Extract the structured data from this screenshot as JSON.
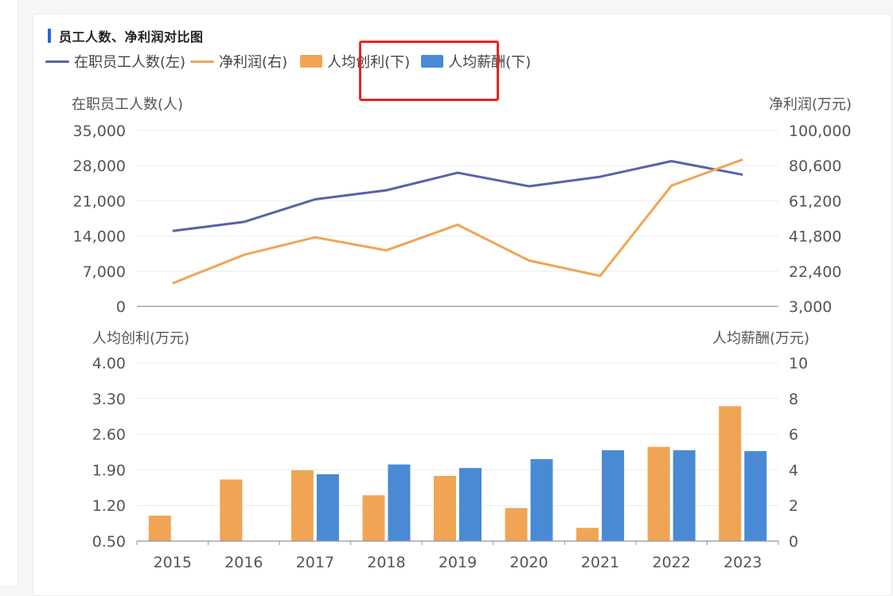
{
  "card": {
    "title": "员工人数、净利润对比图"
  },
  "legend": [
    {
      "label": "在职员工人数(左)",
      "type": "line",
      "color": "#5a63a5"
    },
    {
      "label": "净利润(右)",
      "type": "line",
      "color": "#f0a555"
    },
    {
      "label": "人均创利(下)",
      "type": "bar",
      "color": "#f0a555"
    },
    {
      "label": "人均薪酬(下)",
      "type": "bar",
      "color": "#4a8ad4"
    }
  ],
  "chart_data": [
    {
      "type": "line",
      "title": "",
      "x": [
        "2015",
        "2016",
        "2017",
        "2018",
        "2019",
        "2020",
        "2021",
        "2022",
        "2023"
      ],
      "y_left_label": "在职员工人数(人)",
      "y_right_label": "净利润(万元)",
      "y_left_ticks": [
        "35,000",
        "28,000",
        "21,000",
        "14,000",
        "7,000",
        "0"
      ],
      "y_right_ticks": [
        "100,000",
        "80,600",
        "61,200",
        "41,800",
        "22,400",
        "3,000"
      ],
      "y_left_lim": [
        0,
        35000
      ],
      "y_right_lim": [
        3000,
        100000
      ],
      "series": [
        {
          "name": "在职员工人数(左)",
          "axis": "left",
          "color": "#5a63a5",
          "values": [
            15000,
            16800,
            21300,
            23100,
            26600,
            23900,
            25800,
            28900,
            26200
          ]
        },
        {
          "name": "净利润(右)",
          "axis": "right",
          "color": "#f0a555",
          "values": [
            15700,
            31400,
            41100,
            33900,
            48000,
            28300,
            19800,
            69600,
            84000
          ]
        }
      ]
    },
    {
      "type": "bar",
      "title": "",
      "categories": [
        "2015",
        "2016",
        "2017",
        "2018",
        "2019",
        "2020",
        "2021",
        "2022",
        "2023"
      ],
      "y_left_label": "人均创利(万元)",
      "y_right_label": "人均薪酬(万元)",
      "y_left_ticks": [
        "4.00",
        "3.30",
        "2.60",
        "1.90",
        "1.20",
        "0.50"
      ],
      "y_right_ticks": [
        "10",
        "8",
        "6",
        "4",
        "2",
        "0"
      ],
      "y_left_lim": [
        0.5,
        4.0
      ],
      "y_right_lim": [
        0,
        10
      ],
      "series": [
        {
          "name": "人均创利(下)",
          "axis": "left",
          "color": "#f0a555",
          "values": [
            1.0,
            1.71,
            1.89,
            1.4,
            1.78,
            1.15,
            0.76,
            2.35,
            3.15
          ]
        },
        {
          "name": "人均薪酬(下)",
          "axis": "right",
          "color": "#4a8ad4",
          "values": [
            null,
            null,
            3.75,
            4.3,
            4.1,
            4.6,
            5.1,
            5.1,
            5.05
          ]
        }
      ]
    }
  ]
}
